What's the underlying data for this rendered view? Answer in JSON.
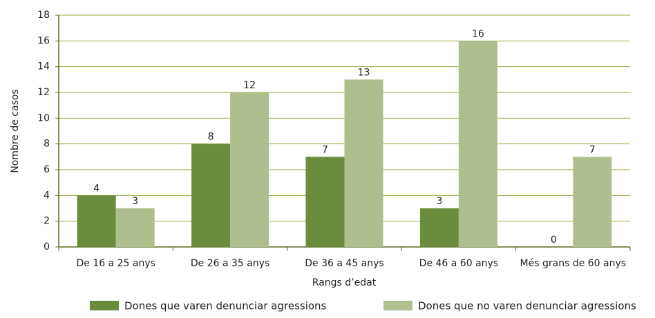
{
  "chart_data": {
    "type": "bar",
    "y_label": "Nombre de casos",
    "x_label": "Rangs d’edat",
    "categories": [
      "De 16 a 25 anys",
      "De 26 a 35 anys",
      "De 36 a 45 anys",
      "De 46 a 60 anys",
      "Més grans de 60 anys"
    ],
    "series": [
      {
        "name": "Dones que varen denunciar agressions",
        "color": "#6b8c3d",
        "values": [
          4,
          8,
          7,
          3,
          0
        ]
      },
      {
        "name": "Dones que no varen denunciar agressions",
        "color": "#aebf8d",
        "values": [
          3,
          12,
          13,
          16,
          7
        ]
      }
    ],
    "ylim": [
      0,
      18
    ],
    "yticks": [
      0,
      2,
      4,
      6,
      8,
      10,
      12,
      14,
      16,
      18
    ],
    "grid": true,
    "legend": "bottom"
  }
}
